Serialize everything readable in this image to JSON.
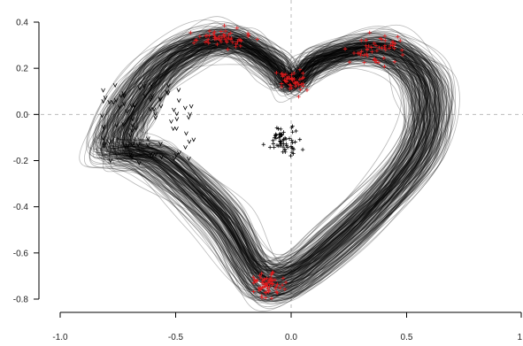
{
  "chart_data": {
    "type": "line",
    "title": "",
    "xlabel": "",
    "ylabel": "",
    "xlim": [
      -1.0,
      1.0
    ],
    "ylim": [
      -0.8,
      0.4
    ],
    "x_ticks": [
      -1.0,
      -0.5,
      0.0,
      0.5,
      1.0
    ],
    "x_tick_labels": [
      "-1.0",
      "-0.5",
      "0.0",
      "0.5",
      "1"
    ],
    "y_ticks": [
      0.4,
      0.2,
      0.0,
      -0.2,
      -0.4,
      -0.6,
      -0.8
    ],
    "y_tick_labels": [
      "0.4",
      "0.2",
      "0.0",
      "-0.2",
      "-0.4",
      "-0.6",
      "-0.8"
    ],
    "reference_lines": {
      "x": 0.0,
      "y": 0.0,
      "style": "dashed"
    },
    "grid": false,
    "legend": "none",
    "colors": {
      "curves": "#000000",
      "curve_opacity": 0.28,
      "markers_red": "#e31a1c",
      "markers_black": "#000000",
      "reference": "#bbbbbb"
    },
    "curve_family": {
      "description_count": 220,
      "template_points": [
        {
          "x": -0.78,
          "y": -0.15
        },
        {
          "x": -0.7,
          "y": 0.05
        },
        {
          "x": -0.52,
          "y": 0.25
        },
        {
          "x": -0.28,
          "y": 0.33
        },
        {
          "x": -0.08,
          "y": 0.22
        },
        {
          "x": 0.0,
          "y": 0.13
        },
        {
          "x": 0.12,
          "y": 0.24
        },
        {
          "x": 0.4,
          "y": 0.29
        },
        {
          "x": 0.6,
          "y": 0.13
        },
        {
          "x": 0.56,
          "y": -0.18
        },
        {
          "x": 0.22,
          "y": -0.55
        },
        {
          "x": -0.1,
          "y": -0.75
        },
        {
          "x": -0.32,
          "y": -0.45
        },
        {
          "x": -0.6,
          "y": -0.2
        }
      ]
    },
    "marker_clusters": [
      {
        "name": "upper-left-lobe",
        "color": "red",
        "center": [
          -0.3,
          0.33
        ],
        "spread": [
          0.06,
          0.02
        ],
        "count": 55
      },
      {
        "name": "center-dip",
        "color": "red",
        "center": [
          0.0,
          0.14
        ],
        "spread": [
          0.03,
          0.03
        ],
        "count": 45
      },
      {
        "name": "upper-right-lobe",
        "color": "red",
        "center": [
          0.37,
          0.28
        ],
        "spread": [
          0.06,
          0.03
        ],
        "count": 55
      },
      {
        "name": "bottom-tip",
        "color": "red",
        "center": [
          -0.1,
          -0.74
        ],
        "spread": [
          0.03,
          0.025
        ],
        "count": 65
      },
      {
        "name": "interior-cluster",
        "color": "black",
        "center": [
          -0.03,
          -0.11
        ],
        "spread": [
          0.035,
          0.03
        ],
        "count": 60
      }
    ],
    "start_points": {
      "color": "black",
      "x_range": [
        -0.82,
        -0.42
      ],
      "y_range": [
        -0.22,
        0.13
      ],
      "count": 80
    }
  }
}
